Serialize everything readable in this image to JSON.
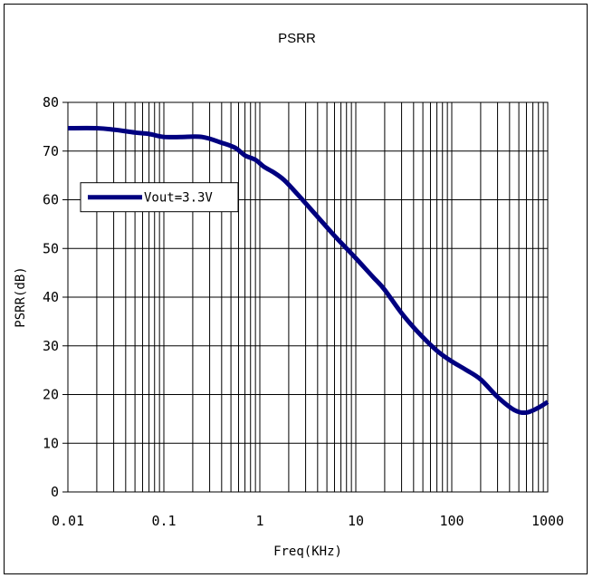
{
  "chart_data": {
    "type": "line",
    "title": "PSRR",
    "xlabel": "Freq(KHz)",
    "ylabel": "PSRR(dB)",
    "xscale": "log",
    "xlim": [
      0.01,
      1000
    ],
    "ylim": [
      0,
      80
    ],
    "xticks": [
      {
        "value": 0.01,
        "label": "0.01"
      },
      {
        "value": 0.1,
        "label": "0.1"
      },
      {
        "value": 1,
        "label": "1"
      },
      {
        "value": 10,
        "label": "10"
      },
      {
        "value": 100,
        "label": "100"
      },
      {
        "value": 1000,
        "label": "1000"
      }
    ],
    "yticks": [
      {
        "value": 0,
        "label": "0"
      },
      {
        "value": 10,
        "label": "10"
      },
      {
        "value": 20,
        "label": "20"
      },
      {
        "value": 30,
        "label": "30"
      },
      {
        "value": 40,
        "label": "40"
      },
      {
        "value": 50,
        "label": "50"
      },
      {
        "value": 60,
        "label": "60"
      },
      {
        "value": 70,
        "label": "70"
      },
      {
        "value": 80,
        "label": "80"
      }
    ],
    "grid": true,
    "legend_position": "upper-left",
    "series": [
      {
        "name": "Vout=3.3V",
        "color": "#000080",
        "points": [
          {
            "x": 0.01,
            "y": 74.7
          },
          {
            "x": 0.02,
            "y": 74.7
          },
          {
            "x": 0.03,
            "y": 74.4
          },
          {
            "x": 0.05,
            "y": 73.8
          },
          {
            "x": 0.07,
            "y": 73.5
          },
          {
            "x": 0.1,
            "y": 72.9
          },
          {
            "x": 0.15,
            "y": 72.9
          },
          {
            "x": 0.25,
            "y": 72.9
          },
          {
            "x": 0.4,
            "y": 71.7
          },
          {
            "x": 0.55,
            "y": 70.7
          },
          {
            "x": 0.7,
            "y": 69.1
          },
          {
            "x": 0.9,
            "y": 68.2
          },
          {
            "x": 1.1,
            "y": 66.8
          },
          {
            "x": 1.4,
            "y": 65.6
          },
          {
            "x": 1.8,
            "y": 64.0
          },
          {
            "x": 2.5,
            "y": 61.0
          },
          {
            "x": 4,
            "y": 56.5
          },
          {
            "x": 6,
            "y": 52.6
          },
          {
            "x": 10,
            "y": 48.0
          },
          {
            "x": 15,
            "y": 44.2
          },
          {
            "x": 20,
            "y": 41.5
          },
          {
            "x": 30,
            "y": 36.7
          },
          {
            "x": 45,
            "y": 32.7
          },
          {
            "x": 70,
            "y": 29.0
          },
          {
            "x": 100,
            "y": 26.8
          },
          {
            "x": 140,
            "y": 25.1
          },
          {
            "x": 200,
            "y": 23.1
          },
          {
            "x": 300,
            "y": 19.5
          },
          {
            "x": 450,
            "y": 16.8
          },
          {
            "x": 600,
            "y": 16.3
          },
          {
            "x": 800,
            "y": 17.3
          },
          {
            "x": 1000,
            "y": 18.5
          }
        ]
      }
    ]
  }
}
